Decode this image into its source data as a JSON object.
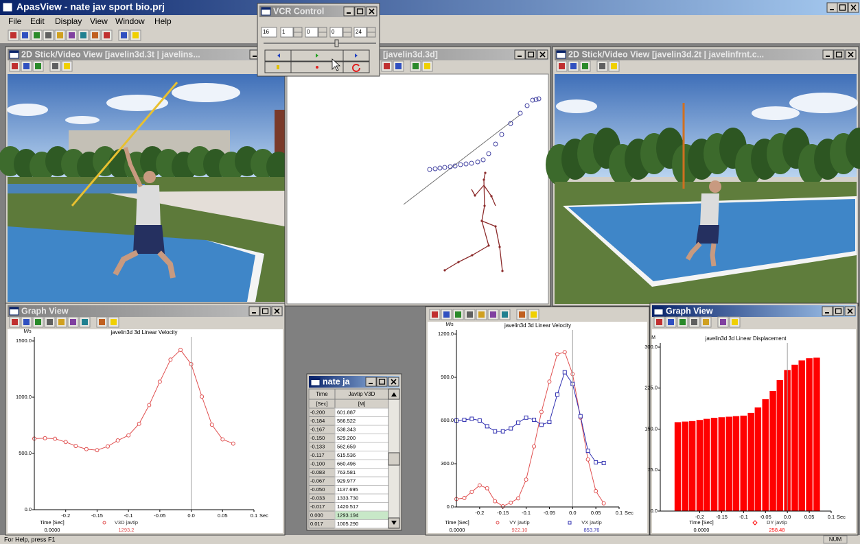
{
  "app": {
    "title": "ApasView - nate jav sport bio.prj",
    "menu": [
      "File",
      "Edit",
      "Display",
      "View",
      "Window",
      "Help"
    ],
    "status": "For Help, press F1",
    "status_indicator": "NUM"
  },
  "vcr": {
    "title": "VCR Control",
    "fields": [
      "16",
      "1",
      "0",
      "0",
      "24"
    ]
  },
  "views": [
    {
      "title": "2D Stick/Video View  [javelin3d.3t | javelins..."
    },
    {
      "title": "[javelin3d.3d]"
    },
    {
      "title": "2D Stick/Video View  [javelin3d.2t | javelinfrnt.c..."
    }
  ],
  "graph_windows": [
    {
      "title": "Graph View"
    },
    {
      "title": "Graph View"
    }
  ],
  "table": {
    "title": "nate ja",
    "columns": [
      "Time",
      "Javtip V3D"
    ],
    "units": [
      "[Sec]",
      "[M]"
    ],
    "rows": [
      [
        "-0.200",
        "601.887"
      ],
      [
        "-0.184",
        "566.522"
      ],
      [
        "-0.167",
        "538.343"
      ],
      [
        "-0.150",
        "529.200"
      ],
      [
        "-0.133",
        "562.659"
      ],
      [
        "-0.117",
        "615.536"
      ],
      [
        "-0.100",
        "660.496"
      ],
      [
        "-0.083",
        "763.581"
      ],
      [
        "-0.067",
        "929.977"
      ],
      [
        "-0.050",
        "1137.695"
      ],
      [
        "-0.033",
        "1333.730"
      ],
      [
        "-0.017",
        "1420.517"
      ],
      [
        "0.000",
        "1293.194"
      ],
      [
        "0.017",
        "1005.290"
      ]
    ]
  },
  "chart_data": [
    {
      "type": "line",
      "title": "javelin3d 3d Linear Velocity",
      "y_unit": "M/s",
      "x_unit": "Sec",
      "x": [
        -0.25,
        -0.233,
        -0.217,
        -0.2,
        -0.184,
        -0.167,
        -0.15,
        -0.133,
        -0.117,
        -0.1,
        -0.083,
        -0.067,
        -0.05,
        -0.033,
        -0.017,
        0,
        0.017,
        0.033,
        0.05,
        0.067
      ],
      "series": [
        {
          "name": "V3D javtip",
          "color": "#e05050",
          "marker": "circle",
          "readout": "1293.2",
          "values": [
            632,
            636,
            630,
            601.887,
            566.522,
            538.343,
            529.2,
            562.659,
            615.536,
            660.496,
            763.581,
            929.977,
            1137.695,
            1333.73,
            1420.517,
            1293.194,
            1005.29,
            755,
            625,
            588
          ]
        }
      ],
      "xlim": [
        -0.25,
        0.1
      ],
      "ylim": [
        0,
        1500
      ],
      "xticks": [
        -0.2,
        -0.15,
        -0.1,
        -0.05,
        {
          "value": 0,
          "label": "0.0"
        },
        0.05,
        0.1
      ],
      "yticks": [
        {
          "value": 0,
          "label": "0.0"
        },
        {
          "value": 500,
          "label": "500.0"
        },
        {
          "value": 1000,
          "label": "1000.0"
        },
        {
          "value": 1500,
          "label": "1500.0"
        }
      ],
      "cursor_x": 0,
      "cursor_label": "Time [Sec]",
      "cursor_time": "0.0000"
    },
    {
      "type": "line",
      "title": "javelin3d 3d Linear Velocity",
      "y_unit": "M/s",
      "x_unit": "Sec",
      "x": [
        -0.25,
        -0.233,
        -0.217,
        -0.2,
        -0.184,
        -0.167,
        -0.15,
        -0.133,
        -0.117,
        -0.1,
        -0.083,
        -0.067,
        -0.05,
        -0.033,
        -0.017,
        0,
        0.017,
        0.033,
        0.05,
        0.067
      ],
      "series": [
        {
          "name": "VY javtip",
          "color": "#e05050",
          "marker": "circle",
          "readout": "922.10",
          "values": [
            55,
            62,
            105,
            150,
            130,
            40,
            5,
            30,
            60,
            190,
            420,
            660,
            870,
            1060,
            1075,
            922.1,
            620,
            330,
            110,
            25
          ]
        },
        {
          "name": "VX javtip",
          "color": "#3030b0",
          "marker": "square",
          "readout": "853.76",
          "values": [
            600,
            605,
            612,
            600,
            560,
            525,
            525,
            545,
            585,
            620,
            605,
            570,
            590,
            780,
            935,
            853.76,
            630,
            390,
            310,
            305
          ]
        }
      ],
      "xlim": [
        -0.25,
        0.1
      ],
      "ylim": [
        0,
        1200
      ],
      "xticks": [
        -0.2,
        -0.15,
        -0.1,
        -0.05,
        {
          "value": 0,
          "label": "0.0"
        },
        0.05,
        0.1
      ],
      "yticks": [
        {
          "value": 0,
          "label": "0.0"
        },
        {
          "value": 300,
          "label": "300.0"
        },
        {
          "value": 600,
          "label": "600.0"
        },
        {
          "value": 900,
          "label": "900.0"
        },
        {
          "value": 1200,
          "label": "1200.0"
        }
      ],
      "cursor_x": 0,
      "cursor_label": "Time [Sec]",
      "cursor_time": "0.0000"
    },
    {
      "type": "bar",
      "title": "javelin3d 3d Linear Displacement",
      "y_unit": "M",
      "x_unit": "Sec",
      "x": [
        -0.25,
        -0.233,
        -0.217,
        -0.2,
        -0.184,
        -0.167,
        -0.15,
        -0.133,
        -0.117,
        -0.1,
        -0.083,
        -0.067,
        -0.05,
        -0.033,
        -0.017,
        0,
        0.017,
        0.033,
        0.05,
        0.067
      ],
      "series": [
        {
          "name": "DY javtip",
          "color": "#ff0000",
          "marker": "diamond",
          "readout": "258.48",
          "values": [
            163,
            164,
            165,
            167,
            169,
            171,
            172,
            173,
            174,
            175,
            180,
            190,
            205,
            220,
            240,
            258.48,
            268,
            276,
            280,
            281
          ]
        }
      ],
      "xlim": [
        -0.29,
        0.1
      ],
      "ylim": [
        0,
        300
      ],
      "xticks": [
        -0.2,
        -0.15,
        -0.1,
        -0.05,
        {
          "value": 0,
          "label": "0.0"
        },
        0.05,
        0.1
      ],
      "yticks": [
        {
          "value": 0,
          "label": "0.0"
        },
        {
          "value": 75,
          "label": "75.0"
        },
        {
          "value": 150,
          "label": "150.0"
        },
        {
          "value": 225,
          "label": "225.0"
        },
        {
          "value": 300,
          "label": "300.0"
        }
      ],
      "cursor_x": 0,
      "cursor_label": "Time [Sec]",
      "cursor_time": "0.0000"
    }
  ]
}
